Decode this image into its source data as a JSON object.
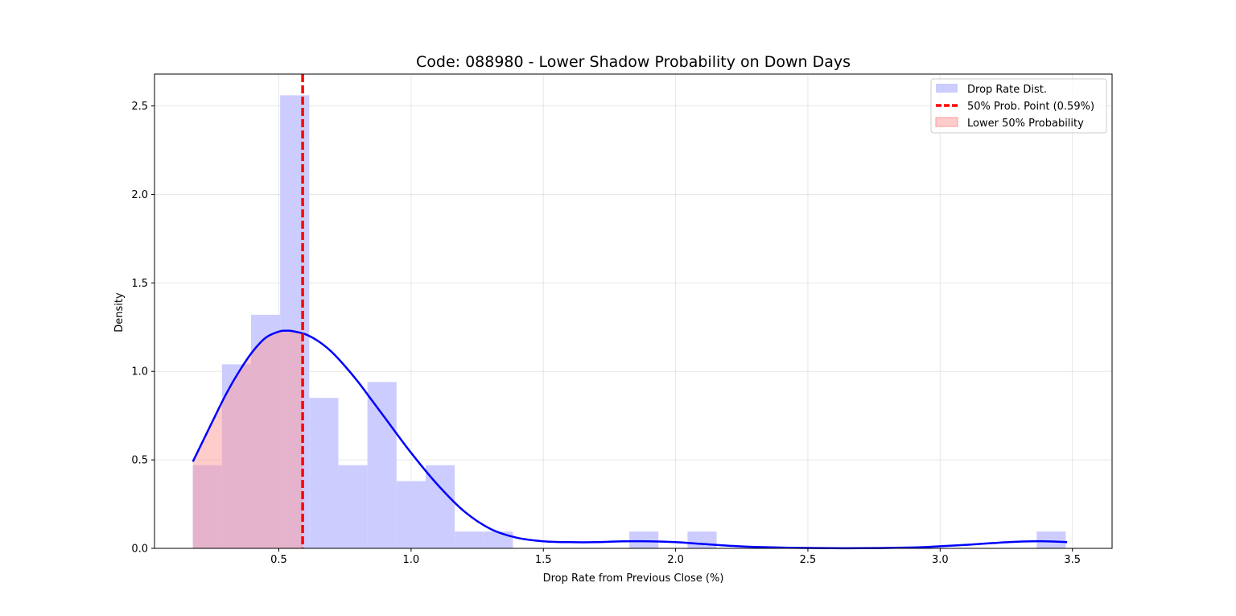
{
  "chart_data": {
    "type": "histogram",
    "title": "Code: 088980 - Lower Shadow Probability on Down Days",
    "xlabel": "Drop Rate from Previous Close (%)",
    "ylabel": "Density",
    "xlim": [
      0.03,
      3.65
    ],
    "ylim": [
      0,
      2.68
    ],
    "xticks": [
      0.5,
      1.0,
      1.5,
      2.0,
      2.5,
      3.0,
      3.5
    ],
    "xtick_labels": [
      "0.5",
      "1.0",
      "1.5",
      "2.0",
      "2.5",
      "3.0",
      "3.5"
    ],
    "yticks": [
      0.0,
      0.5,
      1.0,
      1.5,
      2.0,
      2.5
    ],
    "ytick_labels": [
      "0.0",
      "0.5",
      "1.0",
      "1.5",
      "2.0",
      "2.5"
    ],
    "grid": true,
    "histogram": {
      "name": "Drop Rate Dist.",
      "color": "#ccccff",
      "bin_start": 0.175,
      "bin_width": 0.11,
      "densities": [
        0.47,
        1.04,
        1.32,
        2.56,
        0.85,
        0.47,
        0.94,
        0.38,
        0.47,
        0.095,
        0.095,
        0,
        0,
        0,
        0,
        0.095,
        0,
        0.095,
        0,
        0,
        0,
        0,
        0,
        0,
        0,
        0,
        0,
        0,
        0,
        0.095
      ]
    },
    "kde": {
      "color": "#0000ff",
      "x": [
        0.175,
        0.25,
        0.3,
        0.35,
        0.4,
        0.45,
        0.5,
        0.53,
        0.55,
        0.6,
        0.65,
        0.7,
        0.75,
        0.8,
        0.85,
        0.9,
        1.0,
        1.1,
        1.2,
        1.3,
        1.4,
        1.5,
        1.6,
        1.7,
        1.8,
        1.9,
        2.0,
        2.1,
        2.2,
        2.3,
        2.5,
        2.7,
        2.9,
        3.0,
        3.1,
        3.2,
        3.3,
        3.4,
        3.48
      ],
      "y": [
        0.49,
        0.72,
        0.87,
        1.0,
        1.11,
        1.19,
        1.225,
        1.23,
        1.228,
        1.21,
        1.17,
        1.11,
        1.03,
        0.94,
        0.84,
        0.74,
        0.54,
        0.36,
        0.21,
        0.11,
        0.06,
        0.04,
        0.035,
        0.035,
        0.04,
        0.04,
        0.035,
        0.025,
        0.015,
        0.008,
        0.002,
        0.001,
        0.005,
        0.012,
        0.02,
        0.03,
        0.038,
        0.04,
        0.035
      ]
    },
    "threshold": {
      "name": "50% Prob. Point (0.59%)",
      "x": 0.59,
      "color": "#ff0000"
    },
    "shaded_region": {
      "name": "Lower 50% Probability",
      "color": "#ff9999"
    },
    "legend_position": "upper-right",
    "legend": [
      {
        "label": "Drop Rate Dist."
      },
      {
        "label": "50% Prob. Point (0.59%)"
      },
      {
        "label": "Lower 50% Probability"
      }
    ]
  }
}
